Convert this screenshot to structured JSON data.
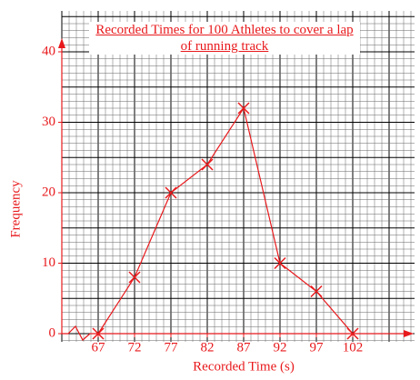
{
  "chart_data": {
    "type": "line",
    "title": "Recorded Times for 100 Athletes to cover a lap of running track",
    "x_label": "Recorded Time (s)",
    "y_label": "Frequency",
    "x": [
      67,
      72,
      77,
      82,
      87,
      92,
      97,
      102
    ],
    "values": [
      0,
      8,
      20,
      24,
      32,
      10,
      6,
      0
    ],
    "color": "#e8191c",
    "xlim": [
      62,
      109
    ],
    "xticks": [
      67,
      72,
      77,
      82,
      87,
      92,
      97,
      102
    ],
    "ylim": [
      0,
      42
    ],
    "yticks": [
      0,
      10,
      20,
      30,
      40
    ],
    "grid": true
  }
}
